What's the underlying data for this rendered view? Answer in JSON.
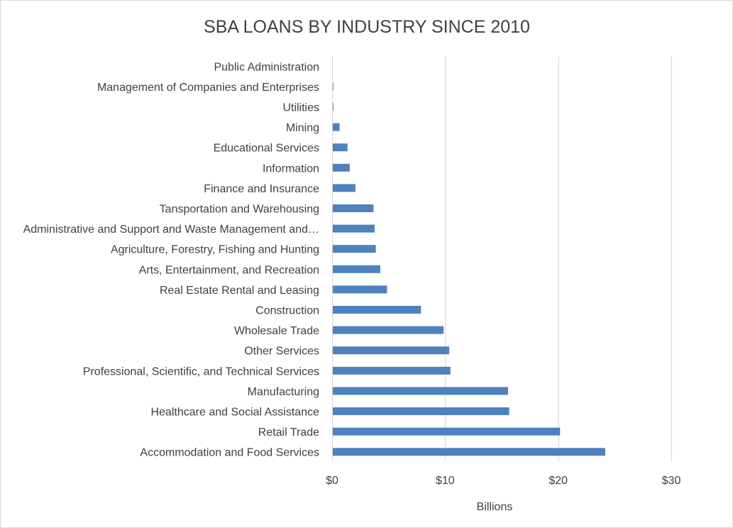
{
  "chart_data": {
    "type": "bar",
    "orientation": "horizontal",
    "title": "SBA LOANS BY INDUSTRY SINCE 2010",
    "xlabel": "Billions",
    "ylabel": "",
    "xlim": [
      0,
      30
    ],
    "x_ticks": [
      0,
      10,
      20,
      30
    ],
    "x_tick_labels": [
      "$0",
      "$10",
      "$20",
      "$30"
    ],
    "grid": true,
    "legend": "none",
    "bar_color": "#4f81bd",
    "categories": [
      "Public Administration",
      "Management of Companies and Enterprises",
      "Utilities",
      "Mining",
      "Educational Services",
      "Information",
      "Finance and Insurance",
      "Tansportation and Warehousing",
      "Administrative and Support and Waste Management and…",
      "Agriculture, Forestry, Fishing and Hunting",
      "Arts, Entertainment, and Recreation",
      "Real Estate Rental and Leasing",
      "Construction",
      "Wholesale Trade",
      "Other Services",
      "Professional, Scientific, and Technical Services",
      "Manufacturing",
      "Healthcare and Social Assistance",
      "Retail Trade",
      "Accommodation and Food Services"
    ],
    "values": [
      0.0,
      0.05,
      0.05,
      0.6,
      1.3,
      1.5,
      2.0,
      3.6,
      3.7,
      3.8,
      4.2,
      4.8,
      7.8,
      9.8,
      10.3,
      10.4,
      15.5,
      15.6,
      20.1,
      24.1
    ]
  }
}
